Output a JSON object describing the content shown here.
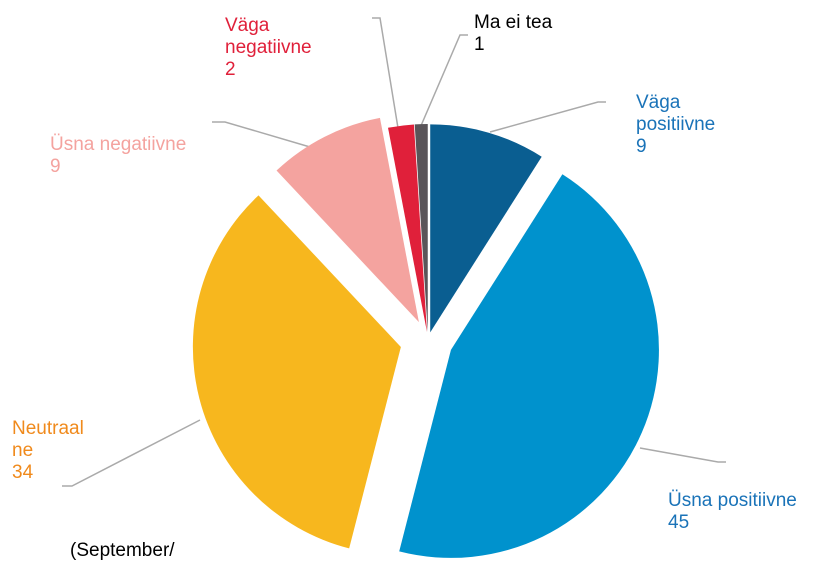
{
  "chart_data": {
    "type": "pie",
    "categories": [
      "Väga positiivne",
      "Üsna positiivne",
      "Neutraalne",
      "Üsna negatiivne",
      "Väga negatiivne",
      "Ma ei tea"
    ],
    "values": [
      9,
      45,
      34,
      9,
      2,
      1
    ],
    "colors": [
      "#0a5e91",
      "#0092cd",
      "#f7b71e",
      "#f4a39f",
      "#e0203a",
      "#5a5559"
    ],
    "label_colors": [
      "#1a73b8",
      "#1a73b8",
      "#f08a1c",
      "#f4a39f",
      "#e0203a",
      "#000000"
    ],
    "note": "(September/"
  }
}
